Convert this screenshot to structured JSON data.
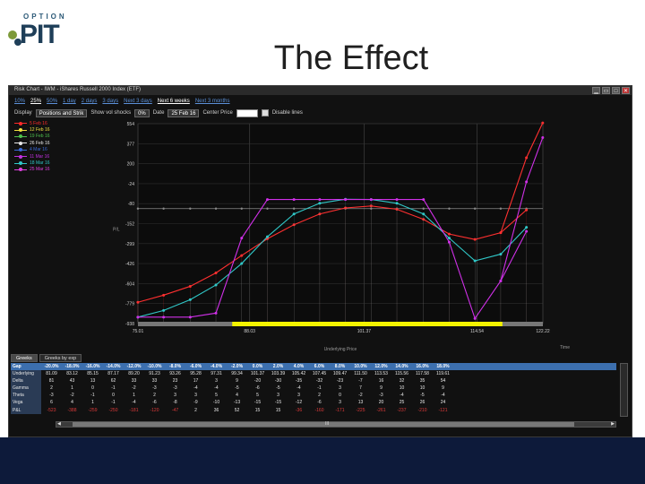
{
  "logo": {
    "top": "OPTION",
    "main": "PIT"
  },
  "slide_title": "The Effect",
  "window": {
    "title": "Risk Chart - IWM - iShares Russell 2000 Index (ETF)",
    "controls": [
      "minimize-icon",
      "restore-icon",
      "maximize-icon",
      "close-icon"
    ]
  },
  "range_links": [
    {
      "label": "10%",
      "active": false
    },
    {
      "label": "25%",
      "active": true
    },
    {
      "label": "50%",
      "active": false
    },
    {
      "label": "1 day",
      "active": false
    },
    {
      "label": "2 days",
      "active": false
    },
    {
      "label": "3 days",
      "active": false
    },
    {
      "label": "Next 3 days",
      "active": false
    },
    {
      "label": "Next 6 weeks",
      "active": true
    },
    {
      "label": "Next 3 months",
      "active": false
    }
  ],
  "controls": {
    "display_label": "Display",
    "display_value": "Positions and Strik",
    "show_vol_shocks_label": "Show vol shocks",
    "vol_shock_value": "0%",
    "date_label": "Date",
    "date_value": "25 Feb 16",
    "center_price_label": "Center Price",
    "disable_lines_label": "Disable lines"
  },
  "legend": [
    {
      "label": "5 Feb 16",
      "color": "#ff2a2a"
    },
    {
      "label": "12 Feb 16",
      "color": "#f0e040"
    },
    {
      "label": "19 Feb 16",
      "color": "#4ec04e"
    },
    {
      "label": "26 Feb 16",
      "color": "#e8e8e8"
    },
    {
      "label": "4 Mar 16",
      "color": "#3a6ad8"
    },
    {
      "label": "11 Mar 16",
      "color": "#c030e0"
    },
    {
      "label": "18 Mar 16",
      "color": "#30c8c8"
    },
    {
      "label": "25 Mar 16",
      "color": "#e040e0"
    }
  ],
  "chart_data": {
    "type": "line",
    "ylabel": "P/L",
    "xlabel": "Underlying Price",
    "x_axis_corner": "Time",
    "y_ticks": [
      "554",
      "377",
      "200",
      "-24",
      "-80",
      "-152",
      "-299",
      "-426",
      "-604",
      "-779",
      "-938"
    ],
    "x_ticks": [
      "75.01",
      "88.03",
      "101.37",
      "114.54",
      "122.22"
    ],
    "ylim": [
      -938,
      554
    ],
    "xlim": [
      75.01,
      122.22
    ],
    "x": [
      75.0,
      78.0,
      81.1,
      84.1,
      87.1,
      90.1,
      93.2,
      96.2,
      99.2,
      102.2,
      105.2,
      108.3,
      111.3,
      114.3,
      117.3,
      120.3
    ],
    "series": [
      {
        "color": "#ff3030",
        "values": [
          -779,
          -726,
          -660,
          -560,
          -430,
          -305,
          -200,
          -120,
          -75,
          -60,
          -85,
          -160,
          -270,
          -310,
          -260,
          -90
        ]
      },
      {
        "color": "#30c8c8",
        "values": [
          -890,
          -840,
          -760,
          -650,
          -490,
          -290,
          -120,
          -40,
          -10,
          -12,
          -40,
          -120,
          -300,
          -470,
          -420,
          -220
        ]
      },
      {
        "color": "#d030e8",
        "values": [
          -890,
          -890,
          -890,
          -860,
          -300,
          -12,
          -12,
          -12,
          -12,
          -12,
          -12,
          -12,
          -330,
          -900,
          -620,
          -250
        ]
      }
    ],
    "extra_lines": [
      {
        "color": "#ff3030",
        "values_x": [
          117.3,
          120.3,
          122.2
        ],
        "values_y": [
          -260,
          300,
          560
        ]
      },
      {
        "color": "#d030e8",
        "values_x": [
          117.3,
          120.3,
          122.2
        ],
        "values_y": [
          -620,
          120,
          450
        ]
      }
    ],
    "zero_line": {
      "y": -80,
      "color": "#8a8a8a"
    },
    "highlight_band": {
      "x_from": 86.0,
      "x_to": 117.5,
      "color": "#f4f400"
    },
    "grid": true
  },
  "tabs": [
    "Greeks",
    "Greeks by exp"
  ],
  "grid": {
    "header_label": "Gap",
    "columns": [
      "-20.0%",
      "-18.0%",
      "-16.0%",
      "-14.0%",
      "-12.0%",
      "-10.0%",
      "-8.0%",
      "-6.0%",
      "-4.0%",
      "-2.0%",
      "0.0%",
      "2.0%",
      "4.0%",
      "6.0%",
      "8.0%",
      "10.0%",
      "12.0%",
      "14.0%",
      "16.0%",
      "18.0%"
    ],
    "rows": [
      {
        "label": "Underlying",
        "values": [
          "81.09",
          "83.12",
          "85.15",
          "87.17",
          "89.20",
          "91.23",
          "93.26",
          "95.28",
          "97.31",
          "99.34",
          "101.37",
          "103.39",
          "105.42",
          "107.45",
          "109.47",
          "111.50",
          "113.53",
          "115.56",
          "117.58",
          "119.61"
        ]
      },
      {
        "label": "Delta",
        "values": [
          "81",
          "43",
          "13",
          "62",
          "33",
          "33",
          "23",
          "17",
          "3",
          "9",
          "-20",
          "-30",
          "-35",
          "-32",
          "-23",
          "-7",
          "16",
          "32",
          "35",
          "54"
        ]
      },
      {
        "label": "Gamma",
        "values": [
          "2",
          "1",
          "0",
          "-1",
          "-2",
          "-3",
          "-3",
          "-4",
          "-4",
          "-5",
          "-6",
          "-5",
          "-4",
          "-1",
          "3",
          "7",
          "9",
          "10",
          "10",
          "9"
        ]
      },
      {
        "label": "Theta",
        "values": [
          "-3",
          "-2",
          "-1",
          "0",
          "1",
          "2",
          "3",
          "3",
          "5",
          "4",
          "5",
          "3",
          "3",
          "2",
          "0",
          "-2",
          "-3",
          "-4",
          "-5",
          "-4"
        ]
      },
      {
        "label": "Vega",
        "values": [
          "6",
          "4",
          "1",
          "-1",
          "-4",
          "-6",
          "-8",
          "-9",
          "-10",
          "-13",
          "-15",
          "-15",
          "-12",
          "-6",
          "3",
          "13",
          "20",
          "25",
          "26",
          "24"
        ]
      },
      {
        "label": "P&L",
        "values": [
          "-523",
          "-388",
          "-259",
          "-250",
          "-181",
          "-120",
          "-47",
          "2",
          "36",
          "52",
          "15",
          "15",
          "-36",
          "-160",
          "-171",
          "-225",
          "-261",
          "-237",
          "-210",
          "-121"
        ]
      }
    ]
  },
  "scrollbar_label": "III"
}
